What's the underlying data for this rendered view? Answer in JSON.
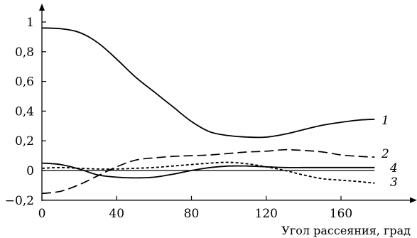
{
  "chart_data": {
    "type": "line",
    "title": "",
    "xlabel": "Угол рассеяния, град",
    "ylabel": "",
    "xlim": [
      0,
      180
    ],
    "ylim": [
      -0.2,
      1.0
    ],
    "grid": false,
    "x_ticks": [
      0,
      40,
      80,
      120,
      160
    ],
    "x_tick_labels": [
      "0",
      "40",
      "80",
      "120",
      "160"
    ],
    "y_ticks": [
      -0.2,
      0,
      0.2,
      0.4,
      0.6,
      0.8,
      1.0
    ],
    "y_tick_labels": [
      "−0,2",
      "0",
      "0,2",
      "0,4",
      "0,6",
      "0,8",
      "1"
    ],
    "series": [
      {
        "label": "1",
        "style": "solid",
        "points": [
          [
            0,
            0.96
          ],
          [
            10,
            0.955
          ],
          [
            20,
            0.93
          ],
          [
            30,
            0.86
          ],
          [
            40,
            0.75
          ],
          [
            50,
            0.63
          ],
          [
            60,
            0.53
          ],
          [
            70,
            0.43
          ],
          [
            80,
            0.33
          ],
          [
            90,
            0.26
          ],
          [
            100,
            0.235
          ],
          [
            110,
            0.225
          ],
          [
            120,
            0.225
          ],
          [
            130,
            0.245
          ],
          [
            140,
            0.275
          ],
          [
            150,
            0.305
          ],
          [
            160,
            0.325
          ],
          [
            170,
            0.34
          ],
          [
            178,
            0.345
          ]
        ]
      },
      {
        "label": "2",
        "style": "long-dash",
        "points": [
          [
            0,
            -0.155
          ],
          [
            10,
            -0.14
          ],
          [
            20,
            -0.095
          ],
          [
            30,
            -0.035
          ],
          [
            40,
            0.025
          ],
          [
            50,
            0.07
          ],
          [
            60,
            0.085
          ],
          [
            70,
            0.095
          ],
          [
            80,
            0.1
          ],
          [
            90,
            0.105
          ],
          [
            100,
            0.115
          ],
          [
            110,
            0.125
          ],
          [
            120,
            0.13
          ],
          [
            130,
            0.14
          ],
          [
            140,
            0.135
          ],
          [
            150,
            0.125
          ],
          [
            160,
            0.105
          ],
          [
            170,
            0.095
          ],
          [
            178,
            0.09
          ]
        ]
      },
      {
        "label": "3",
        "style": "short-dash",
        "points": [
          [
            0,
            0.015
          ],
          [
            10,
            0.02
          ],
          [
            20,
            0.015
          ],
          [
            30,
            0.01
          ],
          [
            40,
            0.01
          ],
          [
            50,
            0.015
          ],
          [
            60,
            0.02
          ],
          [
            70,
            0.03
          ],
          [
            80,
            0.04
          ],
          [
            90,
            0.05
          ],
          [
            100,
            0.055
          ],
          [
            110,
            0.045
          ],
          [
            120,
            0.025
          ],
          [
            130,
            0.0
          ],
          [
            140,
            -0.03
          ],
          [
            150,
            -0.055
          ],
          [
            160,
            -0.065
          ],
          [
            170,
            -0.075
          ],
          [
            178,
            -0.085
          ]
        ]
      },
      {
        "label": "4",
        "style": "solid",
        "points": [
          [
            0,
            0.05
          ],
          [
            10,
            0.04
          ],
          [
            20,
            0.01
          ],
          [
            30,
            -0.03
          ],
          [
            40,
            -0.045
          ],
          [
            50,
            -0.05
          ],
          [
            60,
            -0.045
          ],
          [
            70,
            -0.025
          ],
          [
            80,
            0.0
          ],
          [
            90,
            0.02
          ],
          [
            100,
            0.03
          ],
          [
            110,
            0.03
          ],
          [
            120,
            0.025
          ],
          [
            130,
            0.02
          ],
          [
            140,
            0.02
          ],
          [
            150,
            0.02
          ],
          [
            160,
            0.02
          ],
          [
            170,
            0.02
          ],
          [
            178,
            0.02
          ]
        ]
      }
    ],
    "reference_lines": [
      0
    ]
  }
}
